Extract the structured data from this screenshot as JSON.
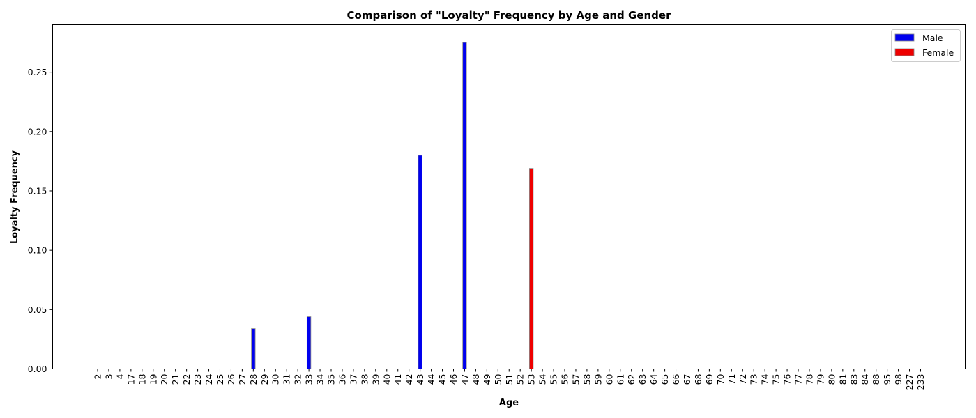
{
  "chart_data": {
    "type": "bar",
    "title": "Comparison of \"Loyalty\" Frequency by Age and Gender",
    "xlabel": "Age",
    "ylabel": "Loyalty Frequency",
    "ylim": [
      0,
      0.29
    ],
    "yticks": [
      "0.00",
      "0.05",
      "0.10",
      "0.15",
      "0.20",
      "0.25"
    ],
    "grid": false,
    "legend_position": "top-right",
    "categories": [
      "2",
      "3",
      "4",
      "17",
      "18",
      "19",
      "20",
      "21",
      "22",
      "23",
      "24",
      "25",
      "26",
      "27",
      "28",
      "29",
      "30",
      "31",
      "32",
      "33",
      "34",
      "35",
      "36",
      "37",
      "38",
      "39",
      "40",
      "41",
      "42",
      "43",
      "44",
      "45",
      "46",
      "47",
      "48",
      "49",
      "50",
      "51",
      "52",
      "53",
      "54",
      "55",
      "56",
      "57",
      "58",
      "59",
      "60",
      "61",
      "62",
      "63",
      "64",
      "65",
      "66",
      "67",
      "68",
      "69",
      "70",
      "71",
      "72",
      "73",
      "74",
      "75",
      "76",
      "77",
      "78",
      "79",
      "80",
      "81",
      "83",
      "84",
      "88",
      "95",
      "98",
      "227",
      "233"
    ],
    "series": [
      {
        "name": "Male",
        "color": "#0000ee",
        "values": [
          0,
          0,
          0,
          0,
          0,
          0,
          0,
          0,
          0,
          0,
          0,
          0,
          0,
          0,
          0.034,
          0,
          0,
          0,
          0,
          0.044,
          0,
          0,
          0,
          0,
          0,
          0,
          0,
          0,
          0,
          0.18,
          0,
          0,
          0,
          0.275,
          0,
          0,
          0,
          0,
          0,
          0,
          0,
          0,
          0,
          0,
          0,
          0,
          0,
          0,
          0,
          0,
          0,
          0,
          0,
          0,
          0,
          0,
          0,
          0,
          0,
          0,
          0,
          0,
          0,
          0,
          0,
          0,
          0,
          0,
          0,
          0,
          0,
          0,
          0,
          0,
          0
        ]
      },
      {
        "name": "Female",
        "color": "#ee0000",
        "values": [
          0,
          0,
          0,
          0,
          0,
          0,
          0,
          0,
          0,
          0,
          0,
          0,
          0,
          0,
          0,
          0,
          0,
          0,
          0,
          0,
          0,
          0,
          0,
          0,
          0,
          0,
          0,
          0,
          0,
          0,
          0,
          0,
          0,
          0,
          0,
          0,
          0,
          0,
          0,
          0.169,
          0,
          0,
          0,
          0,
          0,
          0,
          0,
          0,
          0,
          0,
          0,
          0,
          0,
          0,
          0,
          0,
          0,
          0,
          0,
          0,
          0,
          0,
          0,
          0,
          0,
          0,
          0,
          0,
          0,
          0,
          0,
          0,
          0,
          0,
          0
        ]
      }
    ]
  }
}
